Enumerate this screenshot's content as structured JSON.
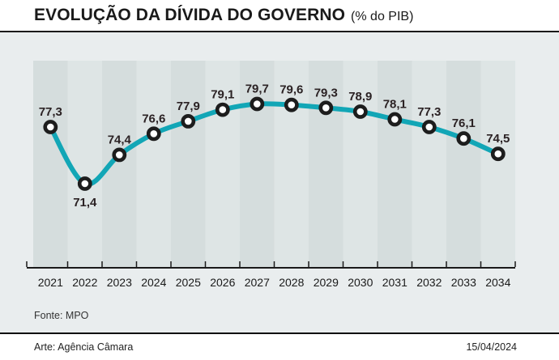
{
  "header": {
    "title": "EVOLUÇÃO DA DÍVIDA DO GOVERNO",
    "subtitle": "(% do PIB)"
  },
  "footer": {
    "source": "Fonte: MPO",
    "credit": "Arte: Agência Câmara",
    "date": "15/04/2024"
  },
  "colors": {
    "line": "#12a6b6",
    "panel_bg": "#e9edee",
    "band_dark": "#d5dddd",
    "band_light": "#dee5e5",
    "marker_ring": "#1d1d1d",
    "marker_fill": "#ffffff",
    "value_label": "#2b2224",
    "axis": "#1a1a1a",
    "year_label": "#1a1a1a"
  },
  "chart_data": {
    "type": "line",
    "title": "EVOLUÇÃO DA DÍVIDA DO GOVERNO",
    "subtitle": "(% do PIB)",
    "xlabel": "",
    "ylabel": "% do PIB",
    "categories": [
      "2021",
      "2022",
      "2023",
      "2024",
      "2025",
      "2026",
      "2027",
      "2028",
      "2029",
      "2030",
      "2031",
      "2032",
      "2033",
      "2034"
    ],
    "values": [
      77.3,
      71.4,
      74.4,
      76.6,
      77.9,
      79.1,
      79.7,
      79.6,
      79.3,
      78.9,
      78.1,
      77.3,
      76.1,
      74.5
    ],
    "decimal_separator": ",",
    "value_labels_shown": true,
    "labels_below_point_indices": [
      1
    ],
    "ylim_visible": [
      71.4,
      79.7
    ],
    "grid": "alternating-vertical-bands",
    "legend": "none"
  }
}
